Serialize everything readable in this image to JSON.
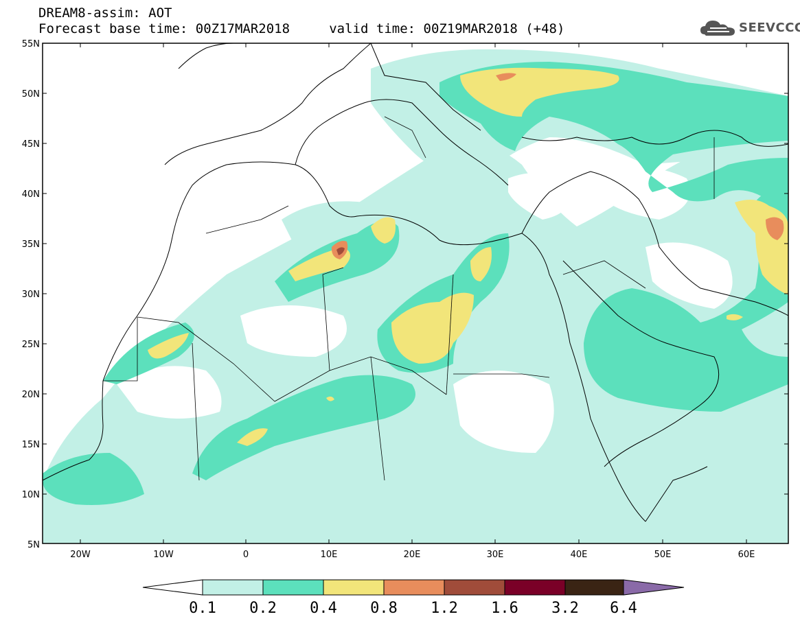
{
  "title": {
    "line1": "DREAM8-assim: AOT",
    "line2": "Forecast base time: 00Z17MAR2018     valid time: 00Z19MAR2018 (+48)"
  },
  "logo": {
    "text": "SEEVCCC",
    "icon": "cloud-icon"
  },
  "map": {
    "lon_range": [
      -25,
      65
    ],
    "lat_range": [
      5,
      55
    ],
    "lat_ticks": [
      "55N",
      "50N",
      "45N",
      "40N",
      "35N",
      "30N",
      "25N",
      "20N",
      "15N",
      "10N",
      "5N"
    ],
    "lon_ticks": [
      "20W",
      "10W",
      "0",
      "10E",
      "20E",
      "30E",
      "40E",
      "50E",
      "60E"
    ]
  },
  "colorbar": {
    "labels": [
      "0.1",
      "0.2",
      "0.4",
      "0.8",
      "1.2",
      "1.6",
      "3.2",
      "6.4"
    ],
    "colors": [
      "#ffffff",
      "#c2f0e6",
      "#5ce0bc",
      "#f2e57a",
      "#e88d5c",
      "#a04c3a",
      "#7a0027",
      "#3a2414",
      "#8a6aa8"
    ]
  },
  "fields": {
    "light": "#c2f0e6",
    "green": "#5ce0bc",
    "yellow": "#f2e57a",
    "orange": "#e88d5c",
    "brown": "#a04c3a"
  }
}
